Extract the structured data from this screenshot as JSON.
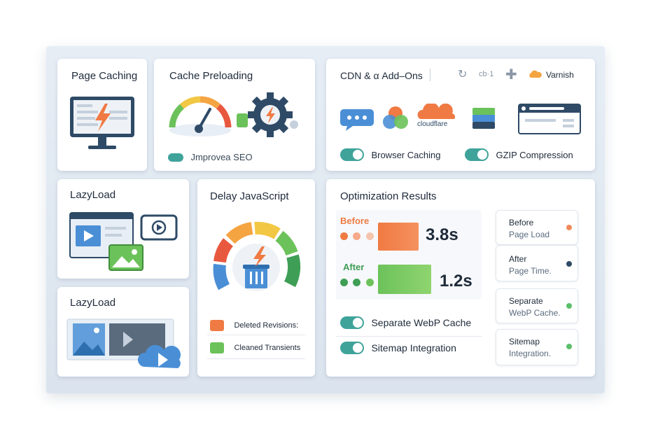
{
  "page_caching": {
    "title": "Page Caching"
  },
  "cache_preloading": {
    "title": "Cache Preloading",
    "seo_label": "Jmprovea SEO"
  },
  "cdn": {
    "title": "CDN & α Add–Ons",
    "addon_text": "cb·1",
    "varnish": "Varnish",
    "cloudflare": "cloudflare",
    "browser_caching": "Browser Caching",
    "gzip": "GZIP Compression"
  },
  "lazyload1": {
    "title": "LazyLoad"
  },
  "lazyload2": {
    "title": "LazyLoad"
  },
  "delay_js": {
    "title": "Delay JavaScript",
    "item1": "Deleted Revisions:",
    "item2": "Cleaned Transients"
  },
  "results": {
    "title": "Optimization Results",
    "before_label": "Before",
    "before_value": "3.8s",
    "after_label": "After",
    "after_value": "1.2s",
    "toggle1": "Separate WebP Cache",
    "toggle2": "Sitemap Integration",
    "side": [
      {
        "line1": "Before",
        "line2": "Page Load",
        "color": "#f08a5a"
      },
      {
        "line1": "After",
        "line2": "Page Time.",
        "color": "#2e4a66"
      },
      {
        "line1": "Separate",
        "line2": "WebP Cache.",
        "color": "#5bbf6a"
      },
      {
        "line1": "Sitemap",
        "line2": "Integration.",
        "color": "#5bbf6a"
      }
    ]
  },
  "colors": {
    "accent": "#3fa39a",
    "orange": "#f07a43",
    "green": "#6cc25a",
    "navy": "#2e4a66"
  }
}
